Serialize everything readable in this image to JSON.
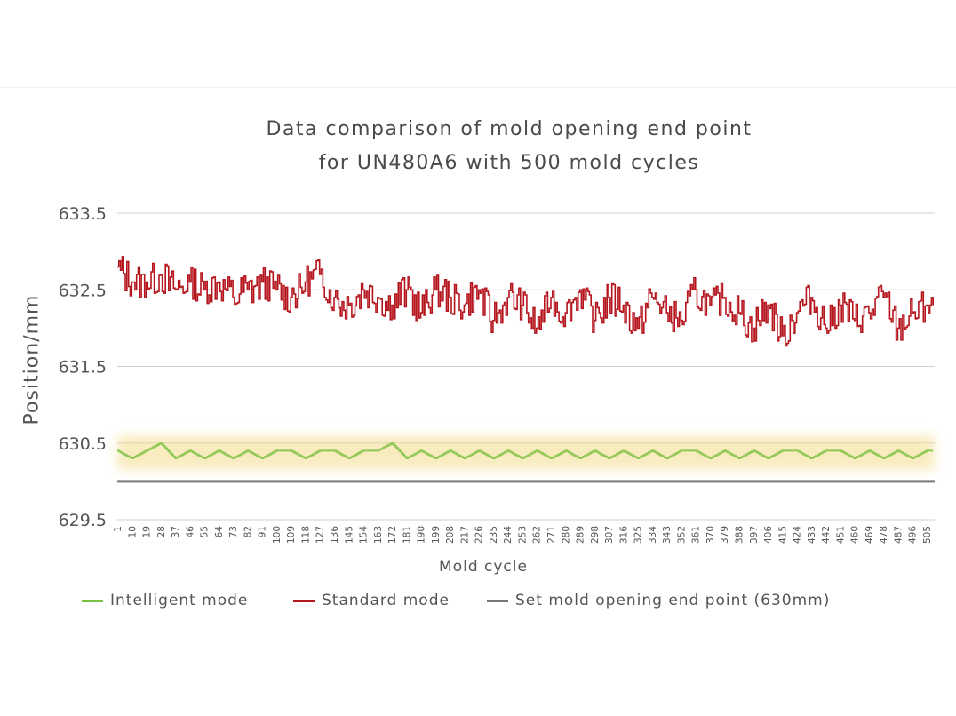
{
  "chart_data": {
    "type": "line",
    "title_line1": "Data comparison of mold opening end point",
    "title_line2": "for UN480A6 with 500 mold cycles",
    "xlabel": "Mold cycle",
    "ylabel": "Position/mm",
    "ylim": [
      629.5,
      633.5
    ],
    "yticks": [
      "629.5",
      "630.5",
      "631.5",
      "632.5",
      "633.5"
    ],
    "grid": true,
    "legend_placement": "bottom",
    "x": [
      1,
      10,
      19,
      28,
      37,
      46,
      55,
      64,
      73,
      82,
      91,
      100,
      109,
      118,
      127,
      136,
      145,
      154,
      163,
      172,
      181,
      190,
      199,
      208,
      217,
      226,
      235,
      244,
      253,
      262,
      271,
      280,
      289,
      298,
      307,
      316,
      325,
      334,
      343,
      352,
      361,
      370,
      379,
      388,
      397,
      406,
      415,
      424,
      433,
      442,
      451,
      460,
      469,
      478,
      487,
      496,
      505
    ],
    "series": [
      {
        "name": "Intelligent mode",
        "color": "#7cc242",
        "values": [
          630.4,
          630.3,
          630.4,
          630.5,
          630.3,
          630.4,
          630.3,
          630.4,
          630.3,
          630.4,
          630.3,
          630.4,
          630.4,
          630.3,
          630.4,
          630.4,
          630.3,
          630.4,
          630.4,
          630.5,
          630.3,
          630.4,
          630.3,
          630.4,
          630.3,
          630.4,
          630.3,
          630.4,
          630.3,
          630.4,
          630.3,
          630.4,
          630.3,
          630.4,
          630.3,
          630.4,
          630.3,
          630.4,
          630.3,
          630.4,
          630.4,
          630.3,
          630.4,
          630.3,
          630.4,
          630.3,
          630.4,
          630.4,
          630.3,
          630.4,
          630.4,
          630.3,
          630.4,
          630.3,
          630.4,
          630.3,
          630.4
        ]
      },
      {
        "name": "Standard mode",
        "color": "#b5161e",
        "values": [
          632.8,
          632.6,
          632.6,
          632.7,
          632.5,
          632.6,
          632.5,
          632.6,
          632.4,
          632.5,
          632.6,
          632.5,
          632.4,
          632.6,
          632.7,
          632.4,
          632.3,
          632.5,
          632.4,
          632.3,
          632.5,
          632.2,
          632.5,
          632.4,
          632.3,
          632.5,
          632.1,
          632.4,
          632.3,
          632.0,
          632.4,
          632.2,
          632.5,
          632.1,
          632.4,
          632.3,
          632.0,
          632.4,
          632.2,
          632.1,
          632.5,
          632.3,
          632.4,
          632.2,
          632.0,
          632.3,
          631.9,
          632.2,
          632.4,
          632.0,
          632.3,
          632.1,
          632.2,
          632.4,
          632.0,
          632.2,
          632.3
        ]
      },
      {
        "name": "Set mold opening end point (630mm)",
        "color": "#777777",
        "value": 630
      }
    ]
  }
}
